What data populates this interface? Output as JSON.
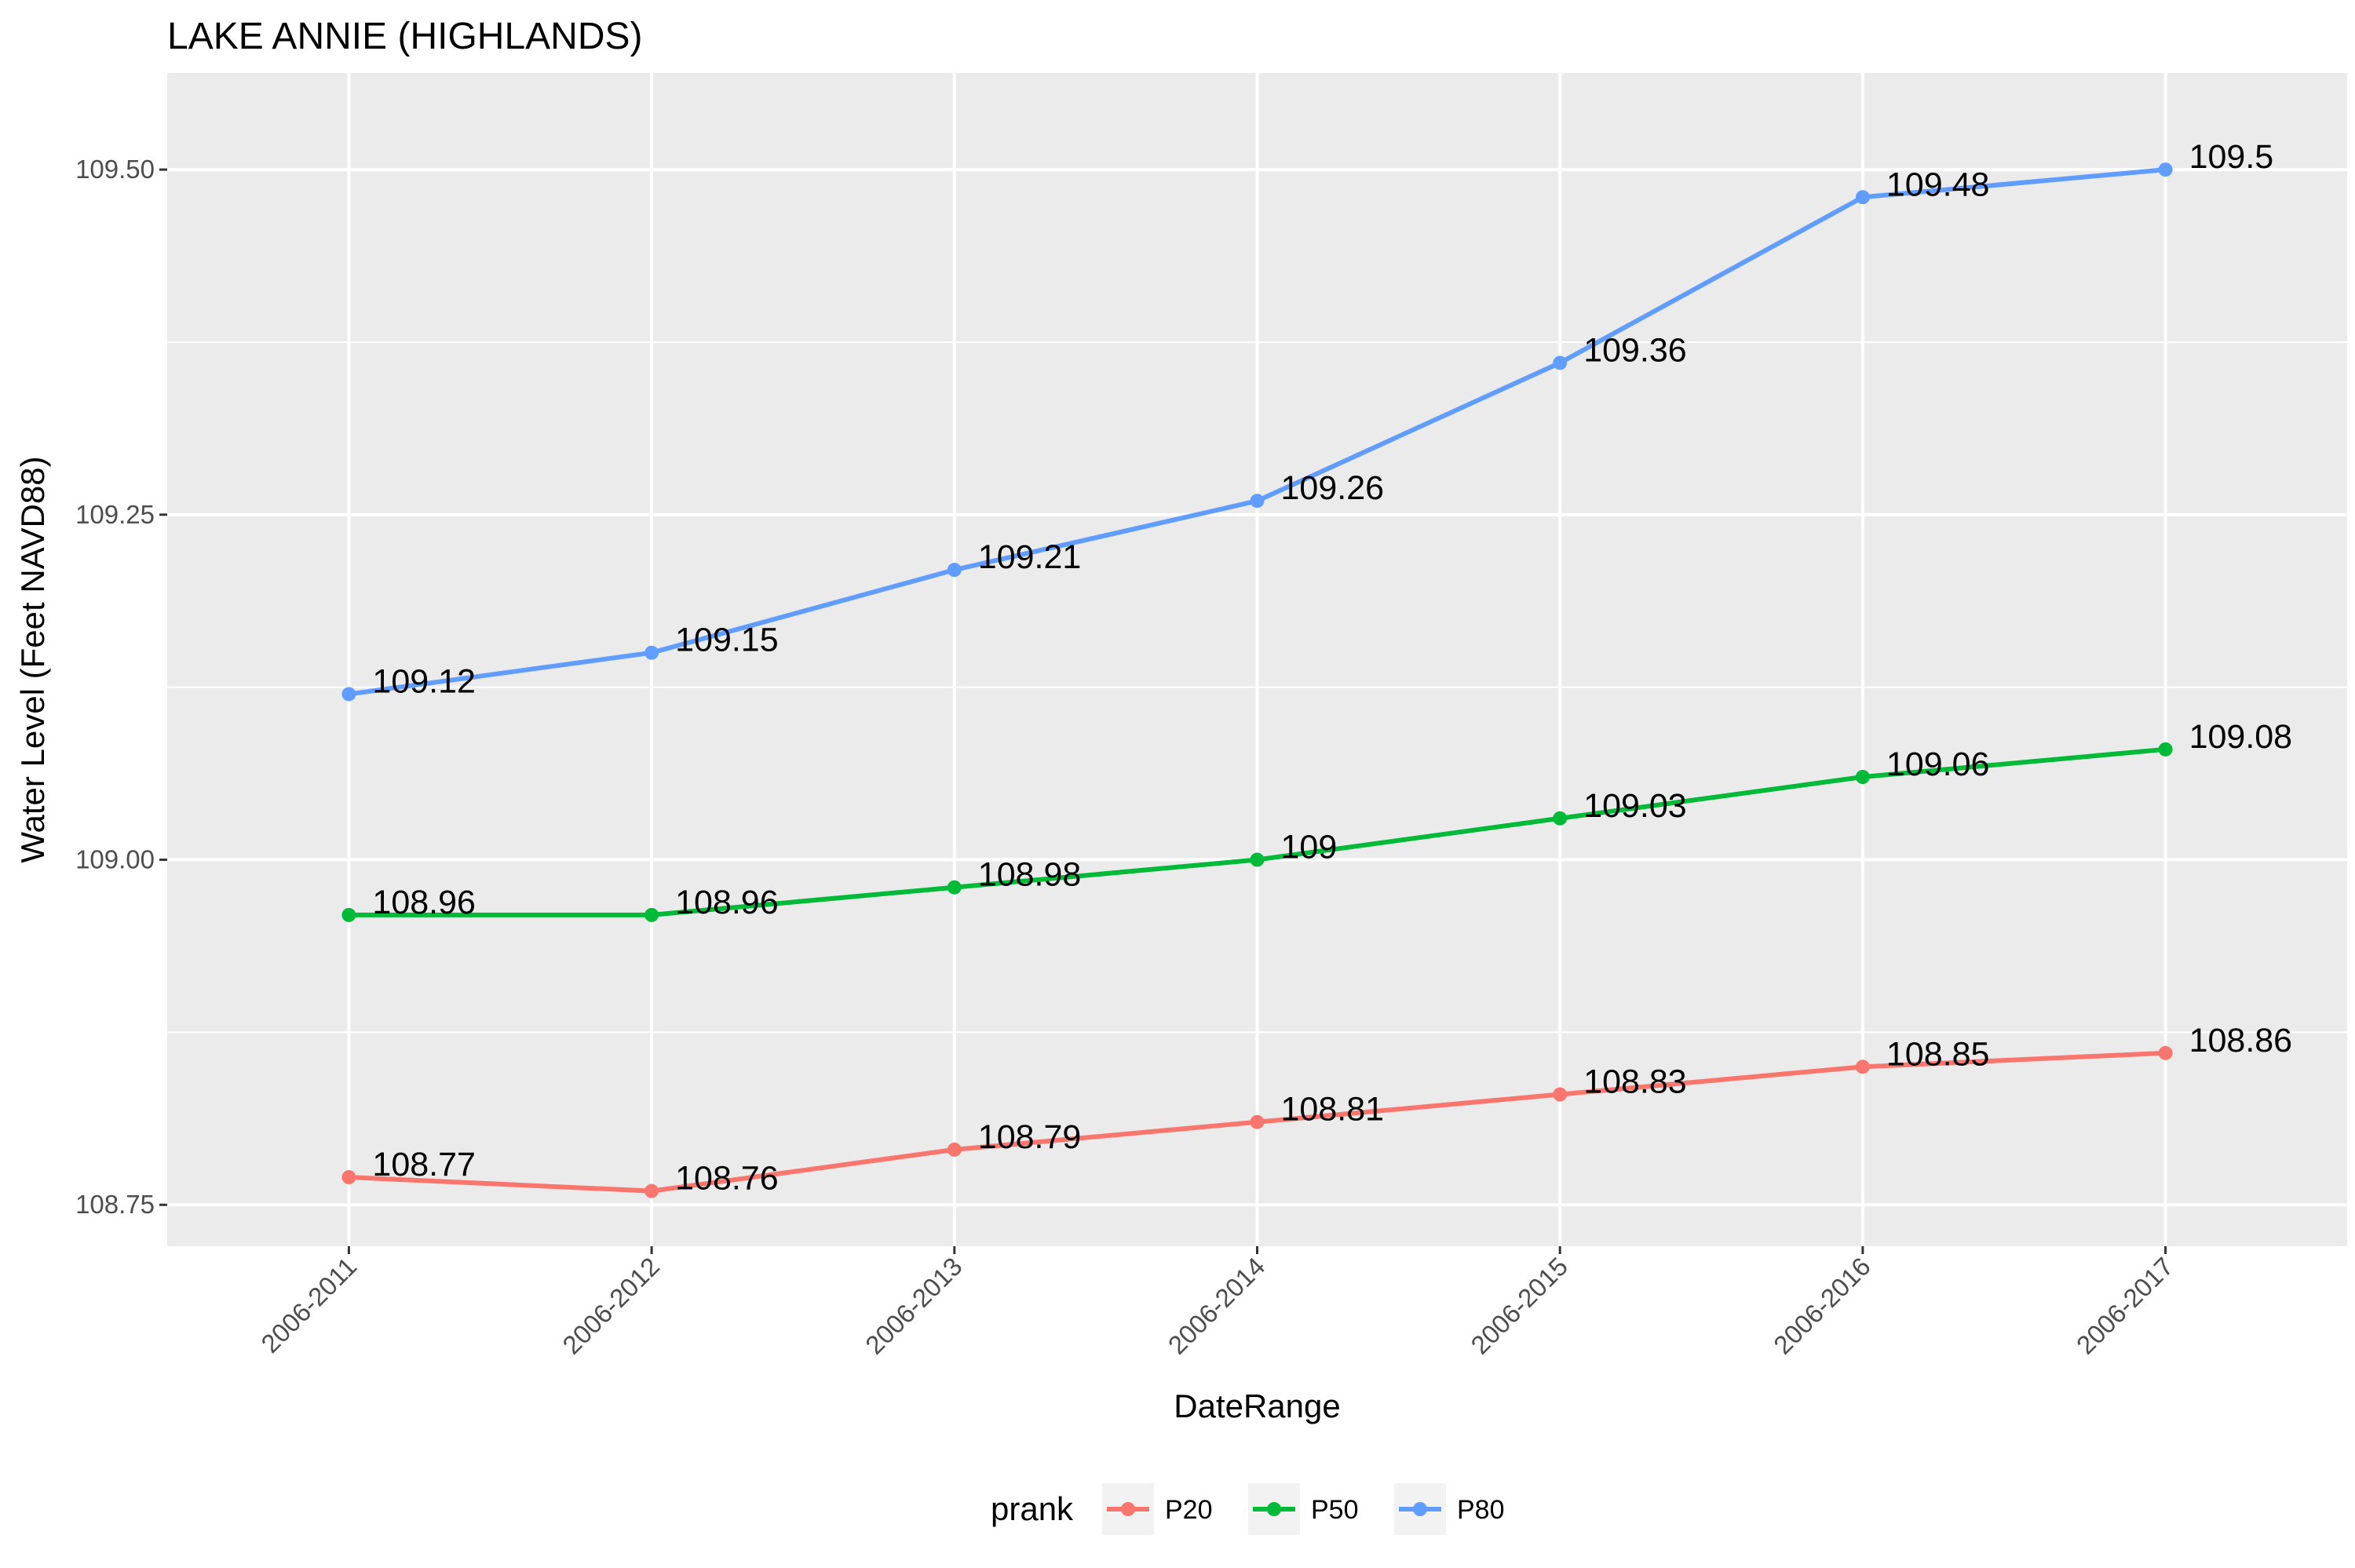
{
  "chart_data": {
    "type": "line",
    "title": "LAKE ANNIE (HIGHLANDS)",
    "xlabel": "DateRange",
    "ylabel": "Water Level (Feet NAVD88)",
    "categories": [
      "2006-2011",
      "2006-2012",
      "2006-2013",
      "2006-2014",
      "2006-2015",
      "2006-2016",
      "2006-2017"
    ],
    "ylim": [
      108.72,
      109.57
    ],
    "yticks": [
      108.75,
      109.0,
      109.25,
      109.5
    ],
    "ytick_labels": [
      "108.75",
      "109.00",
      "109.25",
      "109.50"
    ],
    "grid": true,
    "legend": {
      "title": "prank",
      "position": "bottom"
    },
    "series": [
      {
        "name": "P20",
        "color": "#F8766D",
        "values": [
          108.77,
          108.76,
          108.79,
          108.81,
          108.83,
          108.85,
          108.86
        ],
        "labels": [
          "108.77",
          "108.76",
          "108.79",
          "108.81",
          "108.83",
          "108.85",
          "108.86"
        ]
      },
      {
        "name": "P50",
        "color": "#00BA38",
        "values": [
          108.96,
          108.96,
          108.98,
          109.0,
          109.03,
          109.06,
          109.08
        ],
        "labels": [
          "108.96",
          "108.96",
          "108.98",
          "109",
          "109.03",
          "109.06",
          "109.08"
        ]
      },
      {
        "name": "P80",
        "color": "#619CFF",
        "values": [
          109.12,
          109.15,
          109.21,
          109.26,
          109.36,
          109.48,
          109.5
        ],
        "labels": [
          "109.12",
          "109.15",
          "109.21",
          "109.26",
          "109.36",
          "109.48",
          "109.5"
        ]
      }
    ]
  }
}
